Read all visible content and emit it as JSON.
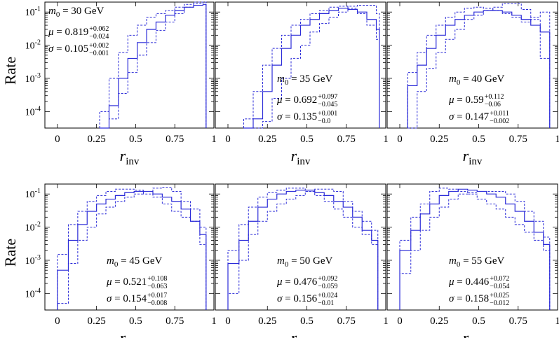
{
  "figure": {
    "ylabel": "Rate",
    "xlabel_main": "r",
    "xlabel_sub": "inv",
    "x_tick_labels": [
      "0",
      "0.25",
      "0.5",
      "0.75",
      "1"
    ],
    "y_tick_labels": [
      {
        "base": "10",
        "exp": "-1"
      },
      {
        "base": "10",
        "exp": "-2"
      },
      {
        "base": "10",
        "exp": "-3"
      },
      {
        "base": "10",
        "exp": "-4"
      }
    ],
    "colors": {
      "series": "#2b2bd8",
      "axes": "#000000"
    }
  },
  "chart_data": [
    {
      "type": "line",
      "title": "m0 = 30 GeV",
      "m_label": "m",
      "m_sub": "0",
      "m_value": " = 30 GeV",
      "mu_value": "0.819",
      "mu_up": "+0.062",
      "mu_dn": "−0.024",
      "sigma_value": "0.105",
      "sigma_up": "+0.002",
      "sigma_dn": "−0.001",
      "xlim": [
        -0.08,
        1.0
      ],
      "ylim_log10": [
        -4.5,
        -0.7
      ],
      "edges": [
        0.27,
        0.33,
        0.39,
        0.45,
        0.51,
        0.57,
        0.63,
        0.69,
        0.75,
        0.81,
        0.87,
        0.93,
        0.95
      ],
      "series": [
        {
          "name": "central",
          "style": "solid",
          "values": [
            3e-05,
            0.00015,
            0.001,
            0.004,
            0.012,
            0.03,
            0.05,
            0.08,
            0.11,
            0.14,
            0.16,
            0.17
          ]
        },
        {
          "name": "upper",
          "style": "dashed",
          "values": [
            0.0001,
            0.001,
            0.006,
            0.02,
            0.04,
            0.07,
            0.09,
            0.11,
            0.14,
            0.17,
            0.2,
            0.28
          ]
        },
        {
          "name": "lower",
          "style": "dashed",
          "values": [
            3e-05,
            6e-05,
            0.00035,
            0.0015,
            0.005,
            0.012,
            0.028,
            0.05,
            0.09,
            0.14,
            0.18,
            0.2
          ]
        }
      ]
    },
    {
      "type": "line",
      "title": "m0 = 35 GeV",
      "m_label": "m",
      "m_sub": "0",
      "m_value": " = 35 GeV",
      "mu_value": "0.692",
      "mu_up": "+0.097",
      "mu_dn": "−0.045",
      "sigma_value": "0.135",
      "sigma_up": "+0.001",
      "sigma_dn": "−0.0",
      "xlim": [
        -0.08,
        1.0
      ],
      "ylim_log10": [
        -4.5,
        -0.7
      ],
      "edges": [
        0.1,
        0.16,
        0.22,
        0.28,
        0.34,
        0.4,
        0.46,
        0.52,
        0.58,
        0.64,
        0.7,
        0.76,
        0.82,
        0.88,
        0.94,
        0.96
      ],
      "series": [
        {
          "name": "central",
          "style": "solid",
          "values": [
            3e-05,
            6e-05,
            0.0004,
            0.0025,
            0.008,
            0.02,
            0.04,
            0.06,
            0.09,
            0.11,
            0.13,
            0.12,
            0.1,
            0.06,
            0.03
          ]
        },
        {
          "name": "upper",
          "style": "dashed",
          "values": [
            6e-05,
            0.0004,
            0.0025,
            0.008,
            0.02,
            0.04,
            0.06,
            0.09,
            0.11,
            0.14,
            0.15,
            0.13,
            0.09,
            0.04,
            0.015
          ]
        },
        {
          "name": "lower",
          "style": "dashed",
          "values": [
            2e-05,
            3e-05,
            5e-05,
            0.00025,
            0.001,
            0.004,
            0.01,
            0.025,
            0.045,
            0.07,
            0.1,
            0.15,
            0.16,
            0.16,
            0.09
          ]
        }
      ]
    },
    {
      "type": "line",
      "title": "m0 = 40 GeV",
      "m_label": "m",
      "m_sub": "0",
      "m_value": " = 40 GeV",
      "mu_value": "0.59",
      "mu_up": "+0.112",
      "mu_dn": "−0.06",
      "sigma_value": "0.147",
      "sigma_up": "+0.011",
      "sigma_dn": "−0.002",
      "xlim": [
        -0.08,
        1.0
      ],
      "ylim_log10": [
        -4.5,
        -0.7
      ],
      "edges": [
        0.05,
        0.11,
        0.17,
        0.23,
        0.29,
        0.35,
        0.41,
        0.47,
        0.53,
        0.59,
        0.65,
        0.71,
        0.77,
        0.83,
        0.89,
        0.95
      ],
      "series": [
        {
          "name": "central",
          "style": "solid",
          "values": [
            0.0006,
            0.0025,
            0.008,
            0.02,
            0.04,
            0.06,
            0.08,
            0.1,
            0.11,
            0.11,
            0.1,
            0.08,
            0.06,
            0.04,
            0.025
          ]
        },
        {
          "name": "upper",
          "style": "dashed",
          "values": [
            0.0015,
            0.006,
            0.02,
            0.04,
            0.07,
            0.1,
            0.13,
            0.14,
            0.13,
            0.11,
            0.09,
            0.07,
            0.05,
            0.07,
            0.1
          ]
        },
        {
          "name": "lower",
          "style": "dashed",
          "values": [
            3e-05,
            0.0004,
            0.002,
            0.006,
            0.015,
            0.03,
            0.06,
            0.08,
            0.11,
            0.14,
            0.18,
            0.18,
            0.12,
            0.06,
            0.004
          ]
        }
      ]
    },
    {
      "type": "line",
      "title": "m0 = 45 GeV",
      "m_label": "m",
      "m_sub": "0",
      "m_value": " = 45 GeV",
      "mu_value": "0.521",
      "mu_up": "+0.108",
      "mu_dn": "−0.063",
      "sigma_value": "0.154",
      "sigma_up": "+0.017",
      "sigma_dn": "−0.008",
      "xlim": [
        -0.08,
        1.0
      ],
      "ylim_log10": [
        -4.5,
        -0.7
      ],
      "edges": [
        0.0,
        0.07,
        0.13,
        0.19,
        0.25,
        0.31,
        0.37,
        0.43,
        0.49,
        0.55,
        0.61,
        0.67,
        0.73,
        0.79,
        0.85,
        0.91,
        0.95
      ],
      "series": [
        {
          "name": "central",
          "style": "solid",
          "values": [
            0.0005,
            0.004,
            0.012,
            0.03,
            0.05,
            0.07,
            0.09,
            0.11,
            0.12,
            0.12,
            0.1,
            0.08,
            0.06,
            0.035,
            0.015,
            0.006
          ]
        },
        {
          "name": "upper",
          "style": "dashed",
          "values": [
            0.0015,
            0.012,
            0.03,
            0.06,
            0.09,
            0.12,
            0.14,
            0.14,
            0.13,
            0.1,
            0.08,
            0.05,
            0.03,
            0.02,
            0.015,
            0.01
          ]
        },
        {
          "name": "lower",
          "style": "dashed",
          "values": [
            5e-05,
            0.0008,
            0.004,
            0.01,
            0.025,
            0.04,
            0.06,
            0.08,
            0.1,
            0.12,
            0.15,
            0.16,
            0.12,
            0.06,
            0.035,
            0.003
          ]
        }
      ]
    },
    {
      "type": "line",
      "title": "m0 = 50 GeV",
      "m_label": "m",
      "m_sub": "0",
      "m_value": " = 50 GeV",
      "mu_value": "0.476",
      "mu_up": "+0.092",
      "mu_dn": "−0.059",
      "sigma_value": "0.156",
      "sigma_up": "+0.024",
      "sigma_dn": "−0.01",
      "xlim": [
        -0.08,
        1.0
      ],
      "ylim_log10": [
        -4.5,
        -0.7
      ],
      "edges": [
        0.0,
        0.07,
        0.13,
        0.19,
        0.25,
        0.31,
        0.37,
        0.43,
        0.49,
        0.55,
        0.61,
        0.67,
        0.73,
        0.79,
        0.85,
        0.91,
        0.95
      ],
      "series": [
        {
          "name": "central",
          "style": "solid",
          "values": [
            0.0008,
            0.004,
            0.015,
            0.04,
            0.07,
            0.1,
            0.12,
            0.13,
            0.13,
            0.11,
            0.09,
            0.06,
            0.04,
            0.02,
            0.008,
            0.004
          ]
        },
        {
          "name": "upper",
          "style": "dashed",
          "values": [
            0.002,
            0.012,
            0.04,
            0.08,
            0.11,
            0.13,
            0.15,
            0.15,
            0.12,
            0.09,
            0.06,
            0.035,
            0.02,
            0.01,
            0.006,
            0.003
          ]
        },
        {
          "name": "lower",
          "style": "dashed",
          "values": [
            0.0001,
            0.001,
            0.006,
            0.015,
            0.03,
            0.05,
            0.07,
            0.09,
            0.12,
            0.14,
            0.14,
            0.12,
            0.06,
            0.03,
            0.015,
            0.008
          ]
        }
      ]
    },
    {
      "type": "line",
      "title": "m0 = 55 GeV",
      "m_label": "m",
      "m_sub": "0",
      "m_value": " = 55 GeV",
      "mu_value": "0.446",
      "mu_up": "+0.072",
      "mu_dn": "−0.054",
      "sigma_value": "0.158",
      "sigma_up": "+0.025",
      "sigma_dn": "−0.012",
      "xlim": [
        -0.08,
        1.0
      ],
      "ylim_log10": [
        -4.5,
        -0.7
      ],
      "edges": [
        0.0,
        0.07,
        0.13,
        0.19,
        0.25,
        0.31,
        0.37,
        0.43,
        0.49,
        0.55,
        0.61,
        0.67,
        0.73,
        0.79,
        0.85,
        0.91,
        0.95
      ],
      "series": [
        {
          "name": "central",
          "style": "solid",
          "values": [
            0.002,
            0.008,
            0.025,
            0.05,
            0.09,
            0.12,
            0.14,
            0.13,
            0.12,
            0.1,
            0.08,
            0.05,
            0.03,
            0.015,
            0.007,
            0.003
          ]
        },
        {
          "name": "upper",
          "style": "dashed",
          "values": [
            0.004,
            0.02,
            0.05,
            0.12,
            0.15,
            0.14,
            0.12,
            0.1,
            0.07,
            0.05,
            0.035,
            0.02,
            0.012,
            0.007,
            0.004,
            0.002
          ]
        },
        {
          "name": "lower",
          "style": "dashed",
          "values": [
            0.0004,
            0.002,
            0.008,
            0.02,
            0.04,
            0.07,
            0.1,
            0.11,
            0.12,
            0.12,
            0.12,
            0.1,
            0.06,
            0.03,
            0.015,
            0.005
          ]
        }
      ]
    }
  ]
}
